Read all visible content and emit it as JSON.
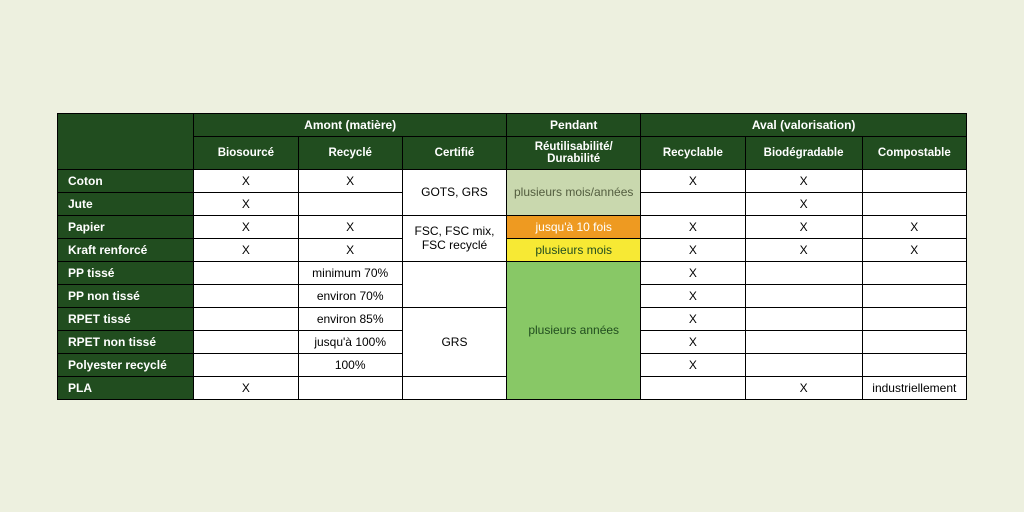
{
  "table": {
    "type": "table",
    "background_color": "#edf0df",
    "header_bg": "#214d1f",
    "header_text_color": "#ffffff",
    "cell_bg": "#ffffff",
    "border_color": "#000000",
    "font_family": "Segoe UI",
    "font_size_pt": 9,
    "groups": [
      "Amont (matière)",
      "Pendant",
      "Aval (valorisation)"
    ],
    "columns": [
      "Biosourcé",
      "Recyclé",
      "Certifié",
      "Réutilisabilité/ Durabilité",
      "Recyclable",
      "Biodégradable",
      "Compostable"
    ],
    "mergedCertifie": [
      "GOTS, GRS",
      "FSC, FSC mix, FSC recyclé",
      "",
      "GRS",
      ""
    ],
    "mergedReuse": [
      {
        "text": "plusieurs mois/années",
        "rowspan": 2,
        "bg": "#c9d8ae",
        "color": "#535d3f"
      },
      {
        "text": "jusqu'à 10 fois",
        "rowspan": 1,
        "bg": "#ee9a21",
        "color": "#ffffff"
      },
      {
        "text": "plusieurs mois",
        "rowspan": 1,
        "bg": "#f7e934",
        "color": "#214d1f"
      },
      {
        "text": "plusieurs années",
        "rowspan": 6,
        "bg": "#88c866",
        "color": "#214d1f"
      }
    ],
    "rows": [
      {
        "label": "Coton",
        "biosource": "X",
        "recycle": "X",
        "recyclable": "X",
        "biodeg": "X",
        "compost": ""
      },
      {
        "label": "Jute",
        "biosource": "X",
        "recycle": "",
        "recyclable": "",
        "biodeg": "X",
        "compost": ""
      },
      {
        "label": "Papier",
        "biosource": "X",
        "recycle": "X",
        "recyclable": "X",
        "biodeg": "X",
        "compost": "X"
      },
      {
        "label": "Kraft renforcé",
        "biosource": "X",
        "recycle": "X",
        "recyclable": "X",
        "biodeg": "X",
        "compost": "X"
      },
      {
        "label": "PP tissé",
        "biosource": "",
        "recycle": "minimum 70%",
        "recyclable": "X",
        "biodeg": "",
        "compost": ""
      },
      {
        "label": "PP non tissé",
        "biosource": "",
        "recycle": "environ 70%",
        "recyclable": "X",
        "biodeg": "",
        "compost": ""
      },
      {
        "label": "RPET tissé",
        "biosource": "",
        "recycle": "environ 85%",
        "recyclable": "X",
        "biodeg": "",
        "compost": ""
      },
      {
        "label": "RPET non tissé",
        "biosource": "",
        "recycle": "jusqu'à 100%",
        "recyclable": "X",
        "biodeg": "",
        "compost": ""
      },
      {
        "label": "Polyester recyclé",
        "biosource": "",
        "recycle": "100%",
        "recyclable": "X",
        "biodeg": "",
        "compost": ""
      },
      {
        "label": "PLA",
        "biosource": "X",
        "recycle": "",
        "recyclable": "",
        "biodeg": "X",
        "compost": "industriellement"
      }
    ]
  }
}
